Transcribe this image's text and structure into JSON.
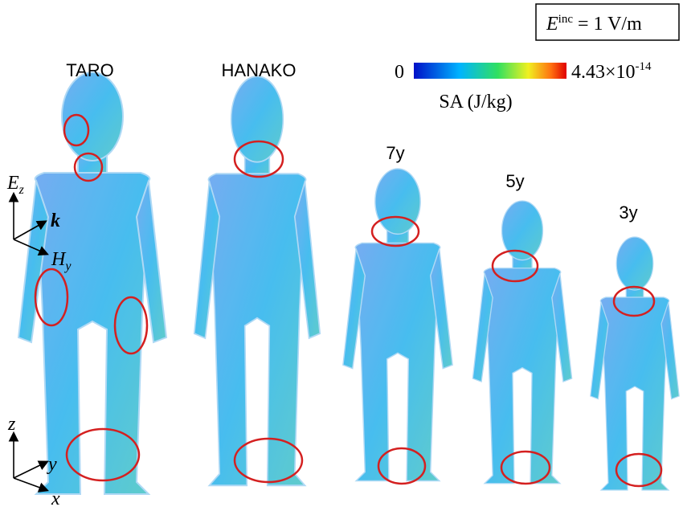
{
  "labels": {
    "taro": "TARO",
    "hanako": "HANAKO",
    "age7": "7y",
    "age5": "5y",
    "age3": "3y"
  },
  "field_box": {
    "symbol": "E",
    "superscript": "inc",
    "text": "= 1 V/m"
  },
  "colorbar": {
    "min": "0",
    "max_mantissa": "4.43×10",
    "max_exponent": "-14",
    "label": "SA (J/kg)"
  },
  "axes_top": {
    "e": "E",
    "e_sub": "z",
    "k": "k",
    "h": "H",
    "h_sub": "y"
  },
  "axes_bottom": {
    "z": "z",
    "y": "y",
    "x": "x"
  }
}
